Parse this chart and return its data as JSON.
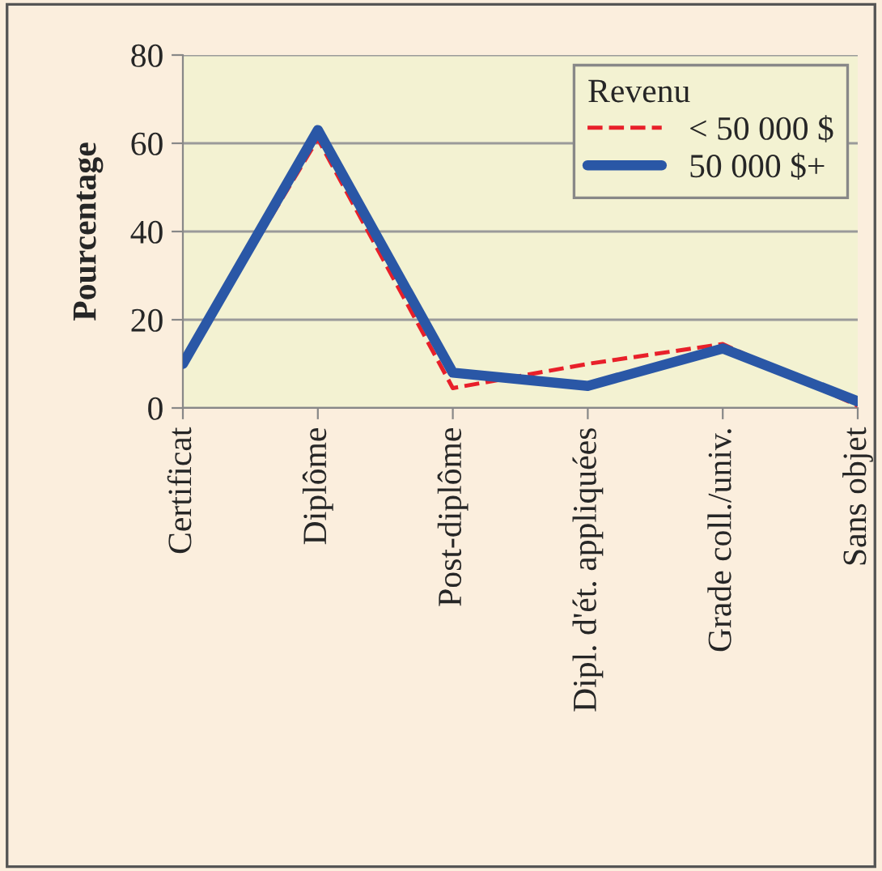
{
  "chart_data": {
    "type": "line",
    "ylabel": "Pourcentage",
    "legend_title": "Revenu",
    "legend": "top right",
    "grid": "y",
    "categories": [
      "Certificat",
      "Diplôme",
      "Post-diplôme",
      "Dipl. d'ét. appliquées",
      "Grade coll./univ.",
      "Sans objet"
    ],
    "ylim": [
      0,
      80
    ],
    "yticks": [
      0,
      20,
      40,
      60,
      80
    ],
    "series": [
      {
        "name": "< 50 000 $",
        "color": "#e8202a",
        "line_style": "dashed",
        "values": [
          10,
          61,
          4.5,
          10,
          14.5,
          0.5
        ]
      },
      {
        "name": "50 000 $+",
        "color": "#2a57a6",
        "line_style": "solid",
        "values": [
          10,
          63,
          8,
          5,
          13.5,
          1.5
        ]
      }
    ]
  }
}
